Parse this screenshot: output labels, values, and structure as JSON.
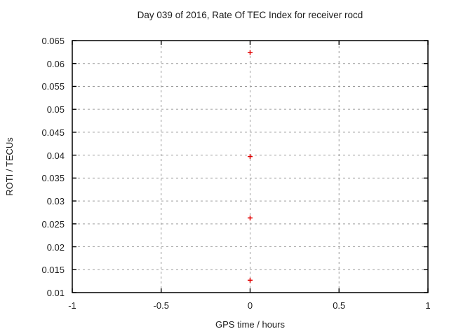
{
  "window": {
    "background_color": "#ffffff",
    "text_color": "#1c1c1c"
  },
  "chart_data": {
    "type": "scatter",
    "title": "Day 039 of 2016, Rate Of TEC Index for receiver rocd",
    "xlabel": "GPS time / hours",
    "ylabel": "ROTI / TECUs",
    "xlim": [
      -1,
      1
    ],
    "ylim": [
      0.01,
      0.065
    ],
    "xticks": {
      "values": [
        -1,
        -0.5,
        0,
        0.5,
        1
      ],
      "labels": [
        "-1",
        "-0.5",
        "0",
        "0.5",
        "1"
      ]
    },
    "yticks": {
      "values": [
        0.065,
        0.06,
        0.055,
        0.05,
        0.045,
        0.04,
        0.035,
        0.03,
        0.025,
        0.02,
        0.015,
        0.01
      ],
      "labels": [
        "0.065",
        "0.06",
        "0.055",
        "0.05",
        "0.045",
        "0.04",
        "0.035",
        "0.03",
        "0.025",
        "0.02",
        "0.015",
        "0.01"
      ]
    },
    "grid": true,
    "grid_style": "dashed",
    "grid_color": "#9c9c9c",
    "axis_color": "#000000",
    "legend": "none",
    "series": [
      {
        "name": "ROTI",
        "marker": "plus",
        "marker_size": 7,
        "color": "#e00000",
        "points": [
          {
            "x": 0,
            "y": 0.0624
          },
          {
            "x": 0,
            "y": 0.0397
          },
          {
            "x": 0,
            "y": 0.0263
          },
          {
            "x": 0,
            "y": 0.0127
          }
        ]
      }
    ]
  }
}
